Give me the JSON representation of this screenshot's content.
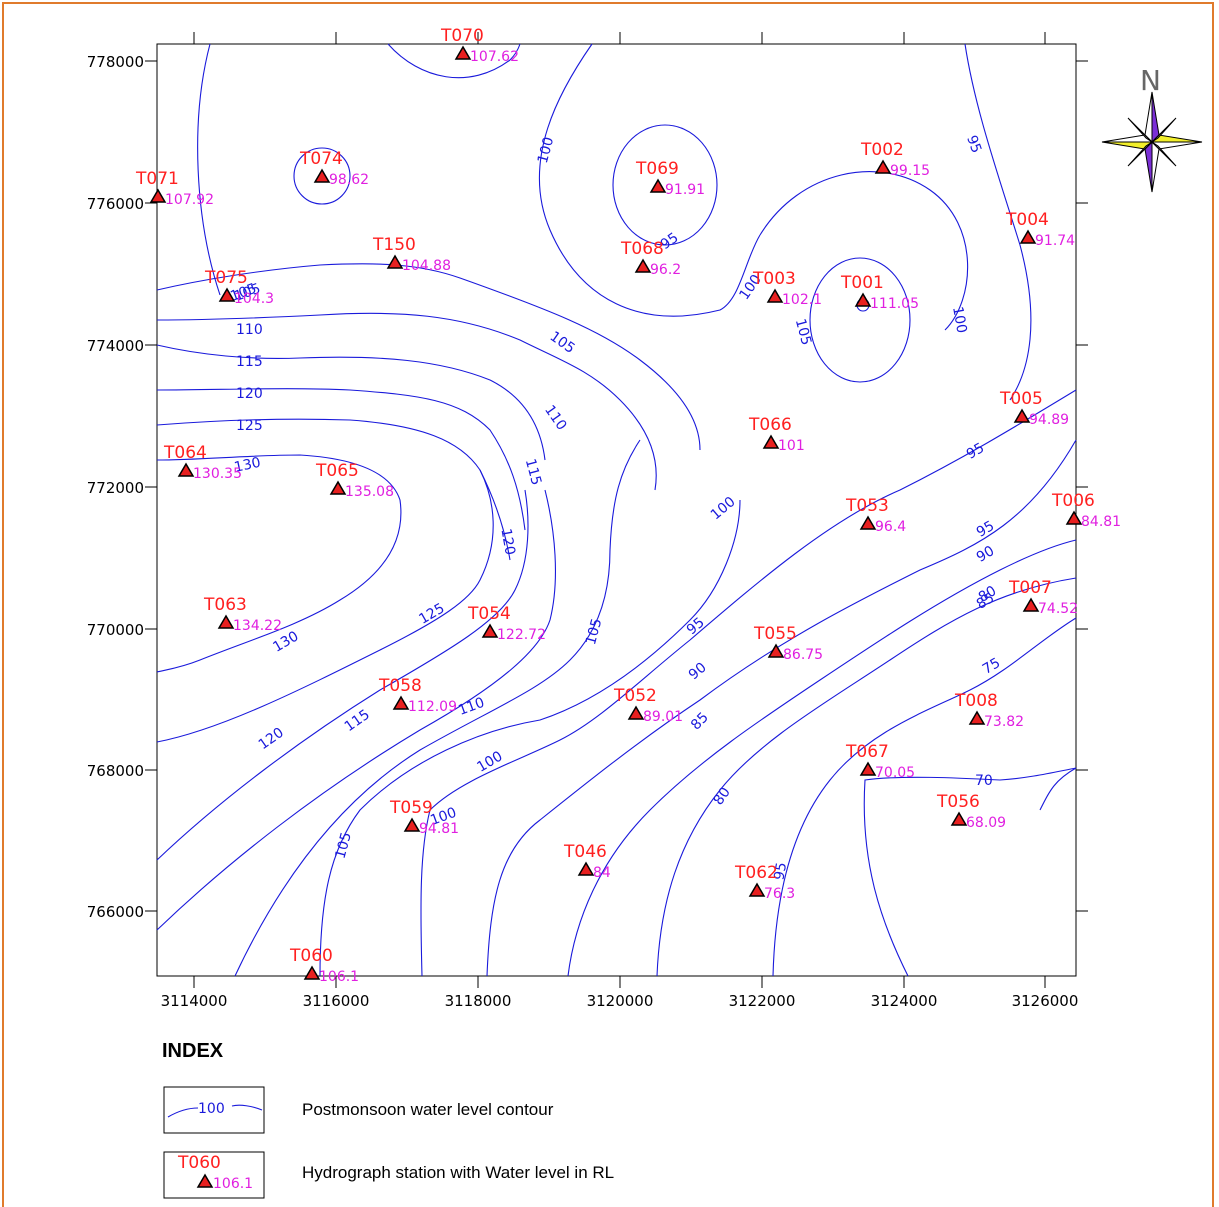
{
  "map": {
    "x_ticks": [
      "3114000",
      "3116000",
      "3118000",
      "3120000",
      "3122000",
      "3124000",
      "3126000"
    ],
    "y_ticks": [
      "778000",
      "776000",
      "774000",
      "772000",
      "770000",
      "768000",
      "766000"
    ],
    "north_label": "N",
    "contour_color": "#1a1adb",
    "station_name_color": "#ff2020",
    "station_value_color": "#e020e0",
    "frame_color": "#e07b2c",
    "contour_labels": [
      "100",
      "95",
      "105",
      "110",
      "115",
      "120",
      "125",
      "130",
      "105",
      "95",
      "100",
      "100",
      "105",
      "100",
      "95",
      "105",
      "110",
      "115",
      "120",
      "100",
      "95",
      "90",
      "85",
      "80",
      "75",
      "70",
      "125",
      "130",
      "120",
      "115",
      "110",
      "105",
      "100",
      "95",
      "90",
      "85",
      "80",
      "105",
      "95"
    ],
    "stations": [
      {
        "name": "T070",
        "value": "107.62"
      },
      {
        "name": "T074",
        "value": "98.62"
      },
      {
        "name": "T071",
        "value": "107.92"
      },
      {
        "name": "T069",
        "value": "91.91"
      },
      {
        "name": "T002",
        "value": "99.15"
      },
      {
        "name": "T004",
        "value": "91.74"
      },
      {
        "name": "T150",
        "value": "104.88"
      },
      {
        "name": "T068",
        "value": "96.2"
      },
      {
        "name": "T075",
        "value": "104.3"
      },
      {
        "name": "T003",
        "value": "102.1"
      },
      {
        "name": "T001",
        "value": "111.05"
      },
      {
        "name": "T005",
        "value": "94.89"
      },
      {
        "name": "T066",
        "value": "101"
      },
      {
        "name": "T064",
        "value": "130.35"
      },
      {
        "name": "T065",
        "value": "135.08"
      },
      {
        "name": "T053",
        "value": "96.4"
      },
      {
        "name": "T006",
        "value": "84.81"
      },
      {
        "name": "T063",
        "value": "134.22"
      },
      {
        "name": "T054",
        "value": "122.72"
      },
      {
        "name": "T007",
        "value": "74.52"
      },
      {
        "name": "T055",
        "value": "86.75"
      },
      {
        "name": "T058",
        "value": "112.09"
      },
      {
        "name": "T052",
        "value": "89.01"
      },
      {
        "name": "T008",
        "value": "73.82"
      },
      {
        "name": "T067",
        "value": "70.05"
      },
      {
        "name": "T059",
        "value": "94.81"
      },
      {
        "name": "T056",
        "value": "68.09"
      },
      {
        "name": "T046",
        "value": "84"
      },
      {
        "name": "T062",
        "value": "76.3"
      },
      {
        "name": "T060",
        "value": "106.1"
      }
    ]
  },
  "index": {
    "title": "INDEX",
    "contour_sample_label": "100",
    "contour_text": "Postmonsoon water level contour",
    "station_sample_name": "T060",
    "station_sample_value": "106.1",
    "station_text": "Hydrograph station with Water level in RL"
  }
}
